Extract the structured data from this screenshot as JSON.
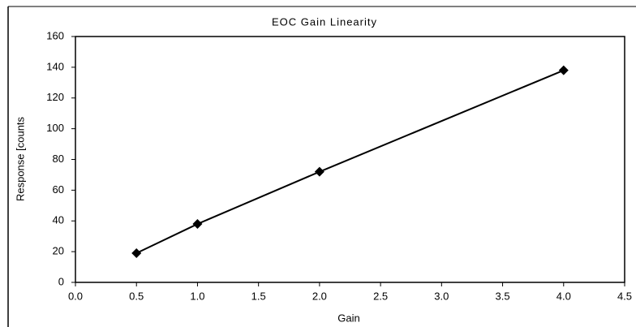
{
  "chart_data": {
    "type": "scatter",
    "title": "EOC Gain Linearity",
    "x_label": "Gain",
    "y_label": "Response [counts",
    "series": [
      {
        "color": "#000000",
        "x": [
          0.5,
          1.0,
          2.0,
          4.0
        ],
        "values": [
          19,
          38,
          72,
          138
        ]
      }
    ],
    "xlim": [
      0,
      4.5
    ],
    "xticks": [
      {
        "value": 0,
        "label": "0.0"
      },
      0.5,
      {
        "value": 1,
        "label": "1.0"
      },
      1.5,
      {
        "value": 2,
        "label": "2.0"
      },
      2.5,
      {
        "value": 3,
        "label": "3.0"
      },
      3.5,
      {
        "value": 4,
        "label": "4.0"
      },
      4.5
    ],
    "ylim": [
      0,
      160
    ],
    "yticks": [
      0,
      20,
      40,
      60,
      80,
      100,
      120,
      140,
      160
    ]
  }
}
